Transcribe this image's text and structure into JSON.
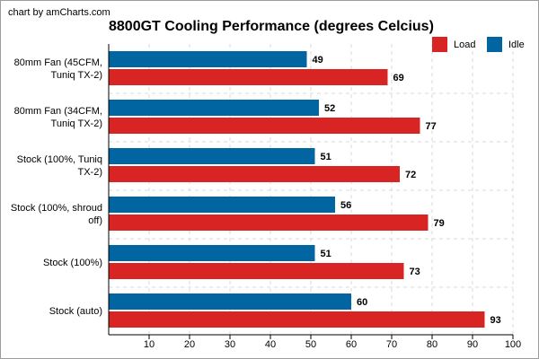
{
  "credit": "chart by amCharts.com",
  "chart_data": {
    "type": "bar",
    "orientation": "horizontal",
    "title": "8800GT Cooling Performance (degrees Celcius)",
    "categories": [
      [
        "80mm Fan (45CFM,",
        "Tuniq TX-2)"
      ],
      [
        "80mm Fan (34CFM,",
        "Tuniq TX-2)"
      ],
      [
        "Stock (100%, Tuniq",
        "TX-2)"
      ],
      [
        "Stock (100%, shroud",
        "off)"
      ],
      [
        "Stock (100%)"
      ],
      [
        "Stock (auto)"
      ]
    ],
    "series": [
      {
        "name": "Idle",
        "color": "#0065a0",
        "values": [
          49,
          52,
          51,
          56,
          51,
          60
        ]
      },
      {
        "name": "Load",
        "color": "#d92424",
        "values": [
          69,
          77,
          72,
          79,
          73,
          93
        ]
      }
    ],
    "xlim": [
      0,
      100
    ],
    "xticks": [
      10,
      20,
      30,
      40,
      50,
      60,
      70,
      80,
      90,
      100
    ],
    "grid": true,
    "legend": [
      {
        "name": "Load",
        "color": "#d92424"
      },
      {
        "name": "Idle",
        "color": "#0065a0"
      }
    ],
    "legend_position": "top-right"
  }
}
